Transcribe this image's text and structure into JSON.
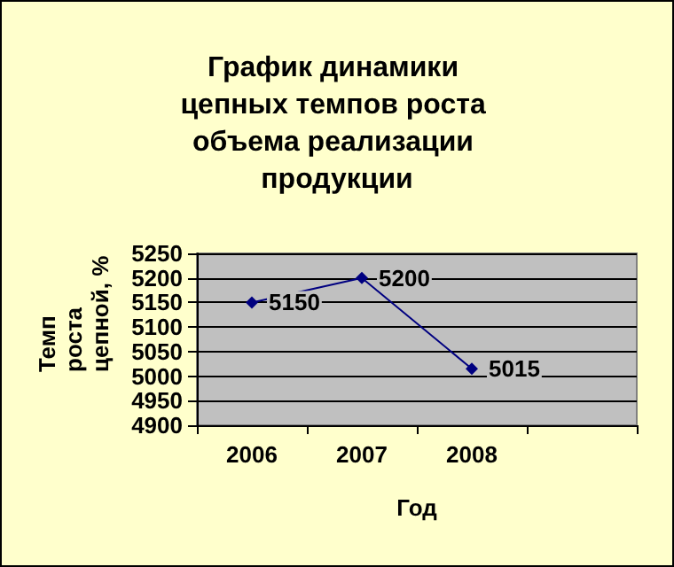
{
  "chart_data": {
    "type": "line",
    "title": "График динамики цепных темпов роста объема реализации продукции",
    "xlabel": "Год",
    "ylabel": "Темп роста цепной, %",
    "categories": [
      "2006",
      "2007",
      "2008",
      null
    ],
    "series": [
      {
        "color": "#000080",
        "values": [
          5150,
          5200,
          5015,
          null
        ]
      }
    ],
    "ylim": [
      4900,
      5250
    ],
    "yticks": [
      4900,
      4950,
      5000,
      5050,
      5100,
      5150,
      5200,
      5250
    ],
    "grid": "y",
    "marker": "diamond",
    "line_style": "solid",
    "data_labels": true
  }
}
